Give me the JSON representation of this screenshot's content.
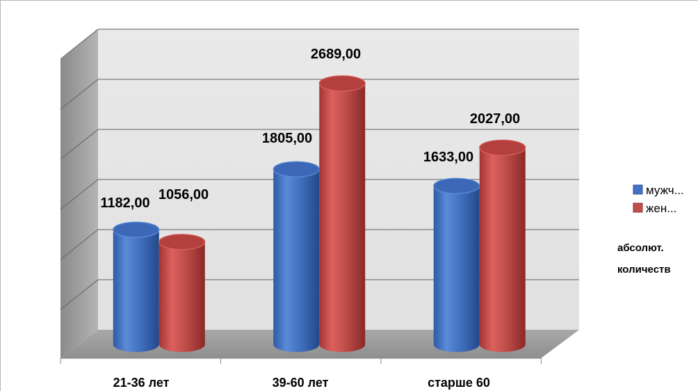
{
  "chart_data": {
    "type": "bar",
    "style": "3d-cylinder",
    "categories": [
      "21-36 лет",
      "39-60 лет",
      "старше 60"
    ],
    "series": [
      {
        "name": "мужч...",
        "color": "#4472c4",
        "values": [
          1182,
          1805,
          1633
        ],
        "labels": [
          "1182,00",
          "1805,00",
          "1633,00"
        ]
      },
      {
        "name": "жен...",
        "color": "#c0504d",
        "values": [
          1056,
          2689,
          2027
        ],
        "labels": [
          "1056,00",
          "2689,00",
          "2027,00"
        ]
      }
    ],
    "ylim": [
      0,
      3000
    ],
    "grid": true,
    "legend_position": "right",
    "note_lines": [
      "абсолют.",
      "количеств"
    ]
  }
}
